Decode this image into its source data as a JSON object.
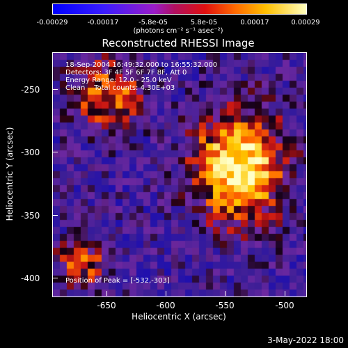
{
  "colorbar": {
    "ticks": [
      "-0.00029",
      "-0.00017",
      "-5.8e-05",
      "5.8e-05",
      "0.00017",
      "0.00029"
    ],
    "unit_label": "(photons cm⁻² s⁻¹ asec⁻²)"
  },
  "title": "Reconstructed RHESSI Image",
  "overlay": {
    "line1": "18-Sep-2004 16:49:32.000 to 16:55:32.000",
    "line2": "Detectors: 3F 4F 5F 6F 7F 8F, Att 0",
    "line3": "Energy Range: 12.0 - 25.0 keV",
    "line4": "Clean    Total counts: 4.30E+03",
    "peak": "Position of Peak = [-532,-303]"
  },
  "axes": {
    "xlabel": "Heliocentric X (arcsec)",
    "ylabel": "Heliocentric Y (arcsec)",
    "xticks": [
      "-650",
      "-600",
      "-550",
      "-500"
    ],
    "yticks": [
      "-250",
      "-300",
      "-350",
      "-400"
    ]
  },
  "footer": {
    "date": "3-May-2022 18:00"
  },
  "colors": {
    "low": "#0000ff",
    "mid": "#e01010",
    "high": "#ffffc0",
    "background": "#000000"
  }
}
